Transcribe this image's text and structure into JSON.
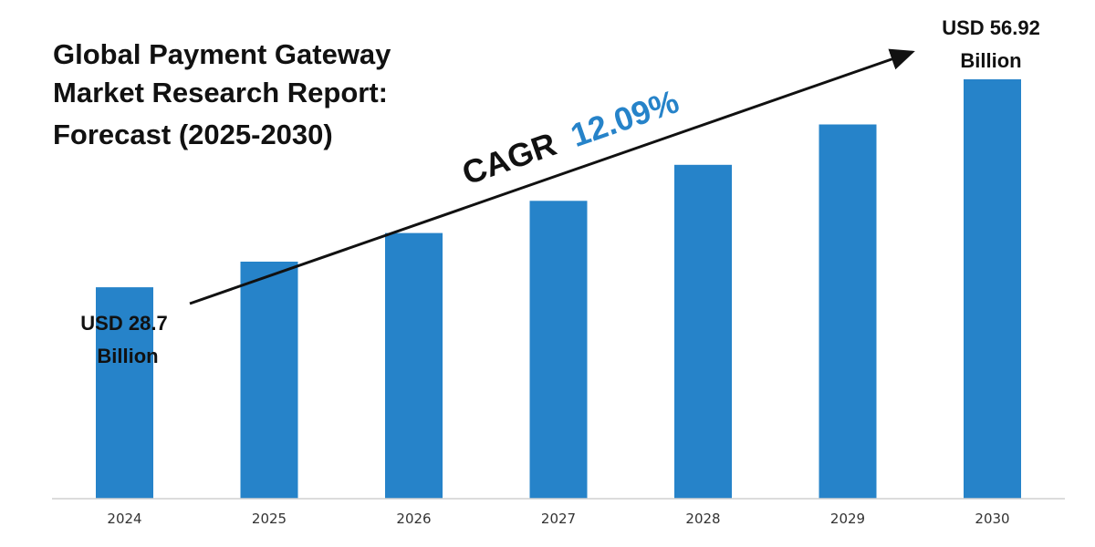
{
  "chart_data": {
    "type": "bar",
    "title_lines": [
      "Global Payment Gateway",
      "Market Research Report:",
      "Forecast (2025-2030)"
    ],
    "categories": [
      "2024",
      "2025",
      "2026",
      "2027",
      "2028",
      "2029",
      "2030"
    ],
    "values": [
      28.7,
      32.17,
      36.06,
      40.42,
      45.31,
      50.79,
      56.92
    ],
    "unit": "USD Billion",
    "ylim": [
      0,
      60
    ],
    "grid": false,
    "xlabel": "",
    "ylabel": "",
    "annotations": {
      "start": {
        "line1": "USD 28.7",
        "line2": "Billion"
      },
      "end": {
        "line1": "USD 56.92",
        "line2": "Billion"
      },
      "cagr_prefix": "CAGR",
      "cagr_value": "12.09%"
    },
    "colors": {
      "bar": "#2683c9",
      "cagr_value": "#2683c9",
      "text": "#111111",
      "axis": "#d0d0d0"
    }
  }
}
